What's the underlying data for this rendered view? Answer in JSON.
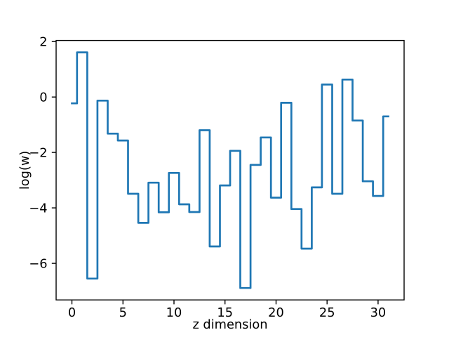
{
  "chart_data": {
    "type": "line",
    "style": "steps-mid",
    "title": "",
    "xlabel": "z dimension",
    "ylabel": "log(w)",
    "line_color": "#1f77b4",
    "background_color": "#ffffff",
    "grid": false,
    "xlim": [
      -1.55,
      32.55
    ],
    "ylim": [
      -7.32,
      2.04
    ],
    "xticks": [
      0,
      5,
      10,
      15,
      20,
      25,
      30
    ],
    "xtick_labels": [
      "0",
      "5",
      "10",
      "15",
      "20",
      "25",
      "30"
    ],
    "yticks": [
      2,
      0,
      -2,
      -4,
      -6
    ],
    "ytick_labels": [
      "2",
      "0",
      "−2",
      "−4",
      "−6"
    ],
    "x": [
      0,
      1,
      2,
      3,
      4,
      5,
      6,
      7,
      8,
      9,
      10,
      11,
      12,
      13,
      14,
      15,
      16,
      17,
      18,
      19,
      20,
      21,
      22,
      23,
      24,
      25,
      26,
      27,
      28,
      29,
      30,
      31
    ],
    "y": [
      -0.23,
      1.61,
      -6.55,
      -0.13,
      -1.32,
      -1.57,
      -3.49,
      -4.54,
      -3.09,
      -4.16,
      -2.74,
      -3.87,
      -4.15,
      -1.2,
      -5.39,
      -3.19,
      -1.94,
      -6.89,
      -2.45,
      -1.46,
      -3.63,
      -0.21,
      -4.04,
      -5.47,
      -3.26,
      0.45,
      -3.49,
      0.63,
      -0.85,
      -3.04,
      -3.57,
      -0.7
    ]
  }
}
